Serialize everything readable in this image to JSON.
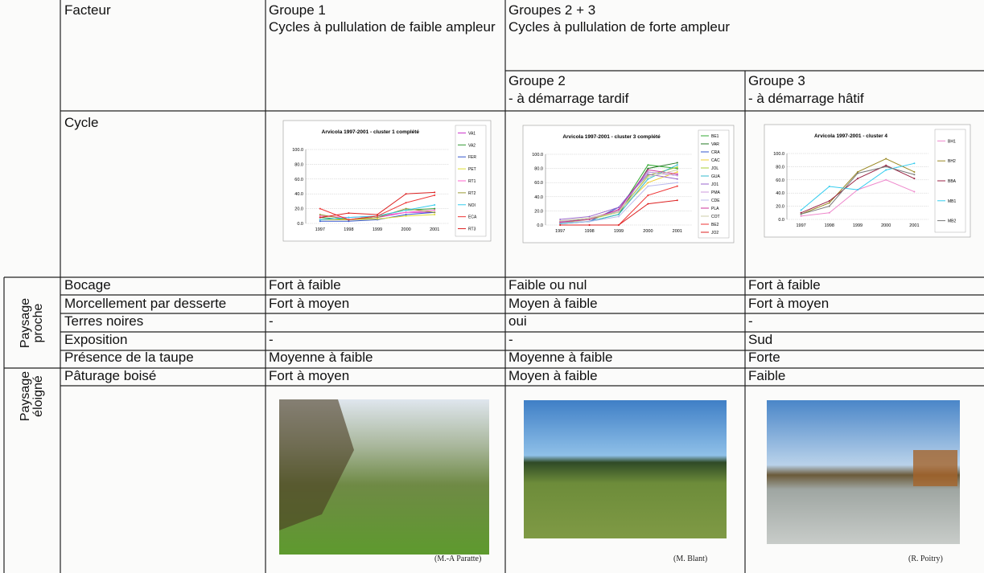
{
  "header": {
    "factor": "Facteur",
    "group1": {
      "title": "Groupe 1",
      "subtitle": "Cycles à pullulation de faible ampleur"
    },
    "groups23": {
      "title": "Groupes 2 + 3",
      "subtitle": "Cycles à pullulation de forte ampleur"
    },
    "group2": {
      "title": "Groupe 2",
      "subtitle": "- à démarrage tardif"
    },
    "group3": {
      "title": "Groupe 3",
      "subtitle": "- à démarrage hâtif"
    }
  },
  "cycle_label": "Cycle",
  "charts": [
    {
      "type": "line",
      "title": "Arvicola 1997-2001 - cluster 1 complété",
      "categories": [
        "1997",
        "1998",
        "1999",
        "2000",
        "2001"
      ],
      "ylim": [
        0,
        100
      ],
      "yticks": [
        {
          "value": 0,
          "label": "0.0"
        },
        {
          "value": 20,
          "label": "20.0"
        },
        {
          "value": 40,
          "label": "40.0"
        },
        {
          "value": 60,
          "label": "60.0"
        },
        {
          "value": 80,
          "label": "80.0"
        },
        {
          "value": 100,
          "label": "100.0"
        }
      ],
      "series": [
        {
          "name": "VA1",
          "color": "#cc33cc",
          "values": [
            5,
            5,
            8,
            15,
            15
          ]
        },
        {
          "name": "VA2",
          "color": "#339933",
          "values": [
            8,
            5,
            10,
            18,
            20
          ]
        },
        {
          "name": "FER",
          "color": "#3355cc",
          "values": [
            3,
            3,
            5,
            12,
            15
          ]
        },
        {
          "name": "PET",
          "color": "#dddd33",
          "values": [
            5,
            5,
            6,
            10,
            12
          ]
        },
        {
          "name": "RT1",
          "color": "#ff66cc",
          "values": [
            10,
            8,
            10,
            15,
            18
          ]
        },
        {
          "name": "RT2",
          "color": "#999933",
          "values": [
            12,
            5,
            8,
            20,
            15
          ]
        },
        {
          "name": "NOI",
          "color": "#33ccee",
          "values": [
            5,
            8,
            10,
            18,
            25
          ]
        },
        {
          "name": "ECA",
          "color": "#ee3333",
          "values": [
            20,
            5,
            10,
            28,
            38
          ]
        },
        {
          "name": "RT3",
          "color": "#dd2222",
          "values": [
            8,
            14,
            12,
            40,
            42
          ]
        }
      ]
    },
    {
      "type": "line",
      "title": "Arvicola 1997-2001 - cluster 3 complété",
      "categories": [
        "1997",
        "1998",
        "1999",
        "2000",
        "2001"
      ],
      "ylim": [
        0,
        100
      ],
      "yticks": [
        {
          "value": 0,
          "label": "0.0"
        },
        {
          "value": 20,
          "label": "20.0"
        },
        {
          "value": 40,
          "label": "40.0"
        },
        {
          "value": 60,
          "label": "60.0"
        },
        {
          "value": 80,
          "label": "80.0"
        },
        {
          "value": 100,
          "label": "100.0"
        }
      ],
      "series": [
        {
          "name": "BE1",
          "color": "#33aa33",
          "values": [
            5,
            8,
            20,
            85,
            80
          ]
        },
        {
          "name": "VAR",
          "color": "#227722",
          "values": [
            3,
            5,
            15,
            80,
            88
          ]
        },
        {
          "name": "CRA",
          "color": "#3355cc",
          "values": [
            2,
            5,
            25,
            75,
            70
          ]
        },
        {
          "name": "CAC",
          "color": "#eecc33",
          "values": [
            5,
            10,
            20,
            60,
            75
          ]
        },
        {
          "name": "JOL",
          "color": "#aacc33",
          "values": [
            3,
            8,
            18,
            70,
            82
          ]
        },
        {
          "name": "GUA",
          "color": "#33bbcc",
          "values": [
            2,
            5,
            15,
            65,
            85
          ]
        },
        {
          "name": "JO1",
          "color": "#9966cc",
          "values": [
            8,
            12,
            25,
            72,
            65
          ]
        },
        {
          "name": "PMA",
          "color": "#cc99dd",
          "values": [
            5,
            10,
            20,
            75,
            70
          ]
        },
        {
          "name": "CDE",
          "color": "#bbbbee",
          "values": [
            3,
            5,
            12,
            55,
            60
          ]
        },
        {
          "name": "PLA",
          "color": "#cc3399",
          "values": [
            4,
            8,
            22,
            78,
            72
          ]
        },
        {
          "name": "COT",
          "color": "#ccccaa",
          "values": [
            6,
            10,
            18,
            68,
            78
          ]
        },
        {
          "name": "BE2",
          "color": "#ee3333",
          "values": [
            0,
            0,
            0,
            42,
            55
          ]
        },
        {
          "name": "JO2",
          "color": "#dd2222",
          "values": [
            0,
            0,
            0,
            30,
            35
          ]
        }
      ]
    },
    {
      "type": "line",
      "title": "Arvicola 1997-2001 - cluster 4",
      "categories": [
        "1997",
        "1998",
        "1999",
        "2000",
        "2001"
      ],
      "ylim": [
        0,
        100
      ],
      "yticks": [
        {
          "value": 0,
          "label": "0.0"
        },
        {
          "value": 20,
          "label": "20.0"
        },
        {
          "value": 40,
          "label": "40.0"
        },
        {
          "value": 60,
          "label": "60.0"
        },
        {
          "value": 80,
          "label": "80.0"
        },
        {
          "value": 100,
          "label": "100.0"
        }
      ],
      "series": [
        {
          "name": "BH1",
          "color": "#ee88cc",
          "values": [
            5,
            10,
            45,
            60,
            42
          ]
        },
        {
          "name": "BH2",
          "color": "#998822",
          "values": [
            8,
            25,
            72,
            92,
            72
          ]
        },
        {
          "name": "BBA",
          "color": "#992244",
          "values": [
            10,
            28,
            62,
            82,
            62
          ]
        },
        {
          "name": "MB1",
          "color": "#33ccee",
          "values": [
            14,
            50,
            45,
            75,
            85
          ]
        },
        {
          "name": "MB2",
          "color": "#777777",
          "values": [
            8,
            20,
            70,
            80,
            68
          ]
        }
      ]
    }
  ],
  "sections": [
    {
      "label": "Paysage proche",
      "rows": [
        [
          "Bocage",
          "Fort à faible",
          "Faible ou nul",
          "Fort à faible"
        ],
        [
          "Morcellement par desserte",
          "Fort à moyen",
          "Moyen à faible",
          "Fort à moyen"
        ],
        [
          "Terres noires",
          "-",
          "oui",
          "-"
        ],
        [
          "Exposition",
          "-",
          "-",
          "Sud"
        ],
        [
          "Présence de la taupe",
          "Moyenne à faible",
          "Moyenne à faible",
          "Forte"
        ]
      ]
    },
    {
      "label": "Paysage éloigné",
      "rows": [
        [
          "Pâturage boisé",
          "Fort à moyen",
          "Moyen à faible",
          "Faible"
        ]
      ]
    }
  ],
  "photo_credits": [
    "(M.-A Paratte)",
    "(M. Blant)",
    "(R. Poitry)"
  ]
}
